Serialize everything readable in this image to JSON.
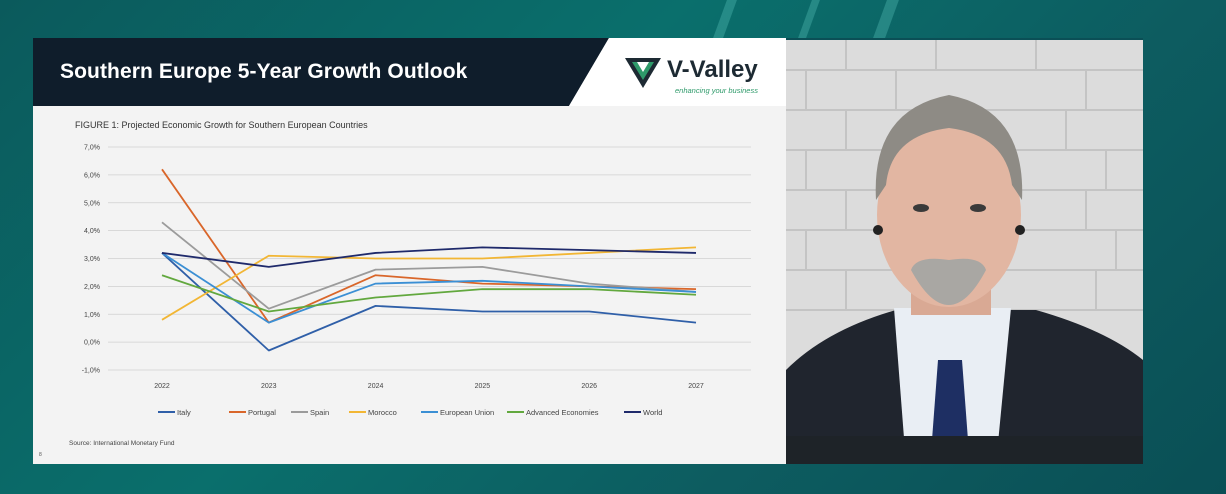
{
  "slide": {
    "title": "Southern Europe 5-Year Growth Outlook",
    "figure_label": "FIGURE 1: Projected Economic Growth for Southern European Countries",
    "source": "Source: International Monetary Fund",
    "page_number": "8"
  },
  "logo": {
    "name": "V-Valley",
    "tagline": "enhancing your business"
  },
  "colors": {
    "title_band": "#0f1d2b",
    "accent": "#2e9a6a",
    "background": "#0b5a5c"
  },
  "chart_data": {
    "type": "line",
    "title": "",
    "xlabel": "",
    "ylabel": "",
    "x": [
      "2022",
      "2023",
      "2024",
      "2025",
      "2026",
      "2027"
    ],
    "y_ticks": [
      "-1,0%",
      "0,0%",
      "1,0%",
      "2,0%",
      "3,0%",
      "4,0%",
      "5,0%",
      "6,0%",
      "7,0%"
    ],
    "ylim": [
      -1,
      7
    ],
    "grid": true,
    "legend_position": "bottom",
    "series": [
      {
        "name": "Italy",
        "color": "#2f5fa8",
        "values": [
          3.2,
          -0.3,
          1.3,
          1.1,
          1.1,
          0.7
        ]
      },
      {
        "name": "Portugal",
        "color": "#d9662a",
        "values": [
          6.2,
          0.7,
          2.4,
          2.1,
          2.0,
          1.9
        ]
      },
      {
        "name": "Spain",
        "color": "#9b9b9b",
        "values": [
          4.3,
          1.2,
          2.6,
          2.7,
          2.1,
          1.8
        ]
      },
      {
        "name": "Morocco",
        "color": "#f2b634",
        "values": [
          0.8,
          3.1,
          3.0,
          3.0,
          3.2,
          3.4
        ]
      },
      {
        "name": "European Union",
        "color": "#3b8fd4",
        "values": [
          3.2,
          0.7,
          2.1,
          2.2,
          2.0,
          1.8
        ]
      },
      {
        "name": "Advanced Economies",
        "color": "#62a83e",
        "values": [
          2.4,
          1.1,
          1.6,
          1.9,
          1.9,
          1.7
        ]
      },
      {
        "name": "World",
        "color": "#1f2a6b",
        "values": [
          3.2,
          2.7,
          3.2,
          3.4,
          3.3,
          3.2
        ]
      }
    ]
  }
}
